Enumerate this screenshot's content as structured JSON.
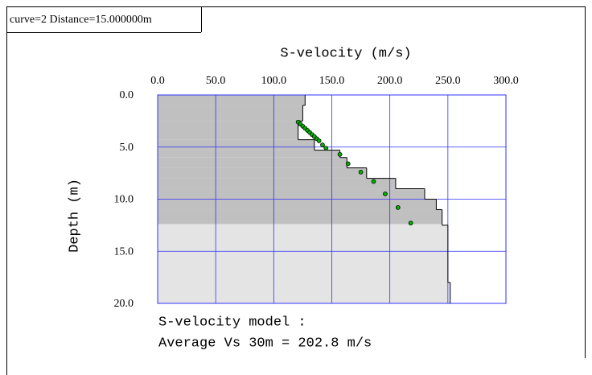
{
  "chart_data": {
    "type": "profile",
    "header": "curve=2 Distance=15.000000m",
    "title": "S-velocity (m/s)",
    "ylabel": "Depth (m)",
    "annotations": [
      "S-velocity model :",
      "Average Vs 30m = 202.8 m/s"
    ],
    "xlim": [
      0,
      300
    ],
    "ylim": [
      0,
      20
    ],
    "xticks": [
      {
        "value": 0,
        "label": "0.0"
      },
      {
        "value": 50,
        "label": "50.0"
      },
      {
        "value": 100,
        "label": "100.0"
      },
      {
        "value": 150,
        "label": "150.0"
      },
      {
        "value": 200,
        "label": "200.0"
      },
      {
        "value": 250,
        "label": "250.0"
      },
      {
        "value": 300,
        "label": "300.0"
      }
    ],
    "yticks": [
      {
        "value": 0,
        "label": "0.0"
      },
      {
        "value": 5,
        "label": "5.0"
      },
      {
        "value": 10,
        "label": "10.0"
      },
      {
        "value": 15,
        "label": "15.0"
      },
      {
        "value": 20,
        "label": "20.0"
      }
    ],
    "grid": true,
    "dark_fill_until": 12.4,
    "layers": {
      "depth_top": [
        0,
        1.0,
        2.5,
        4.3,
        5.3,
        6.0,
        7.0,
        8.0,
        9.0,
        10.0,
        11.0,
        12.5,
        18.0
      ],
      "velocity": [
        127,
        125,
        121,
        135,
        157,
        163,
        180,
        205,
        230,
        240,
        245,
        250,
        252
      ],
      "color": "#000000"
    },
    "points": {
      "x": [
        121,
        123,
        125,
        127,
        129,
        131,
        133,
        135,
        137,
        139,
        142,
        145,
        157,
        164,
        175,
        186,
        196,
        207,
        218
      ],
      "y": [
        2.6,
        2.8,
        3.0,
        3.2,
        3.4,
        3.6,
        3.8,
        4.0,
        4.2,
        4.4,
        4.8,
        5.1,
        5.7,
        6.6,
        7.4,
        8.3,
        9.5,
        10.8,
        12.3
      ],
      "color": "#00b000"
    }
  }
}
